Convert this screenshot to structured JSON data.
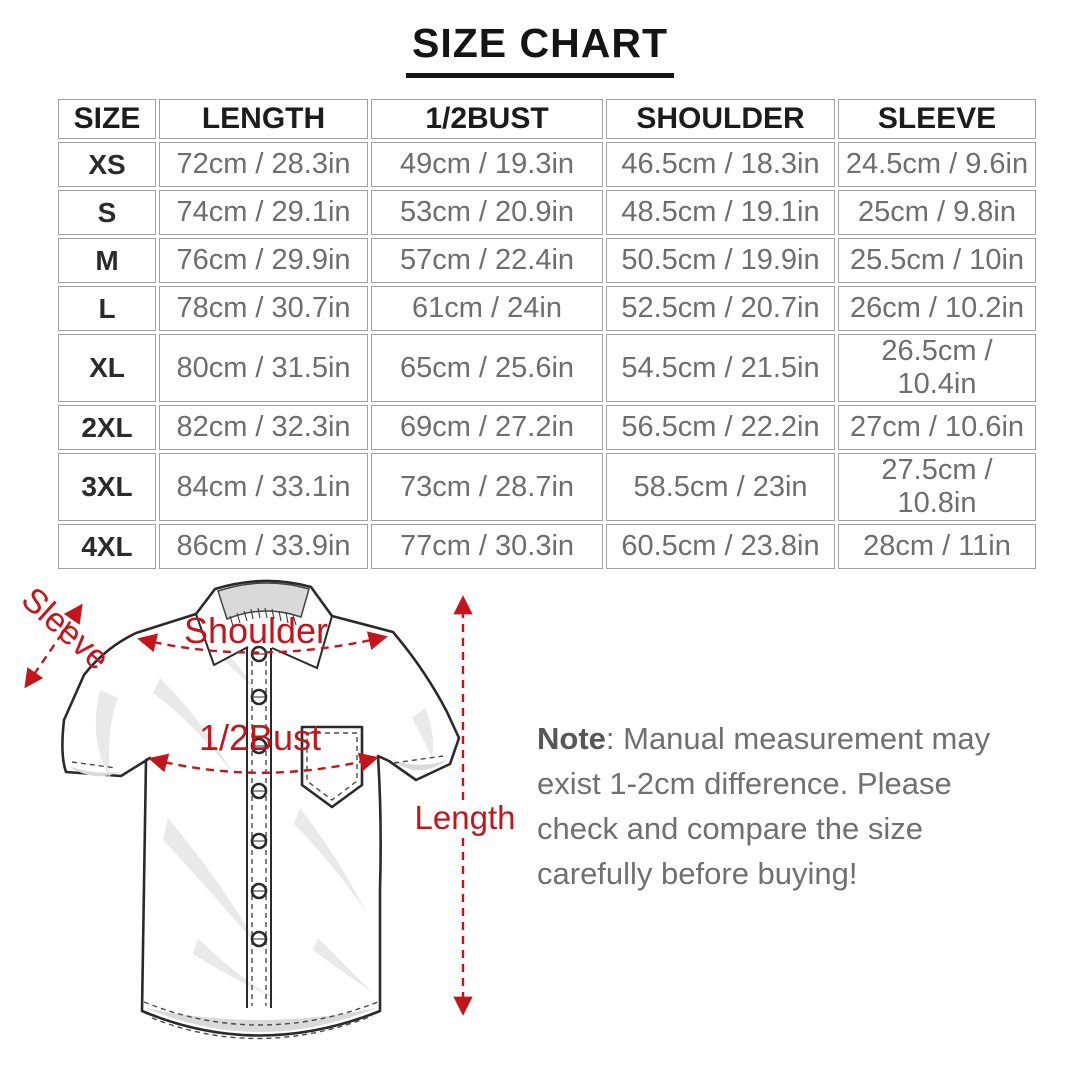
{
  "title": "SIZE CHART",
  "colors": {
    "accent": "#c4151c",
    "table_border": "#a0a0a0",
    "cell_text": "#6e6e6e"
  },
  "table": {
    "columns": [
      "SIZE",
      "LENGTH",
      "1/2BUST",
      "SHOULDER",
      "SLEEVE"
    ],
    "rows": [
      [
        "XS",
        "72cm / 28.3in",
        "49cm / 19.3in",
        "46.5cm / 18.3in",
        "24.5cm / 9.6in"
      ],
      [
        "S",
        "74cm / 29.1in",
        "53cm / 20.9in",
        "48.5cm / 19.1in",
        "25cm / 9.8in"
      ],
      [
        "M",
        "76cm / 29.9in",
        "57cm / 22.4in",
        "50.5cm / 19.9in",
        "25.5cm / 10in"
      ],
      [
        "L",
        "78cm / 30.7in",
        "61cm / 24in",
        "52.5cm / 20.7in",
        "26cm / 10.2in"
      ],
      [
        "XL",
        "80cm / 31.5in",
        "65cm / 25.6in",
        "54.5cm / 21.5in",
        "26.5cm / 10.4in"
      ],
      [
        "2XL",
        "82cm / 32.3in",
        "69cm / 27.2in",
        "56.5cm / 22.2in",
        "27cm / 10.6in"
      ],
      [
        "3XL",
        "84cm / 33.1in",
        "73cm / 28.7in",
        "58.5cm / 23in",
        "27.5cm / 10.8in"
      ],
      [
        "4XL",
        "86cm / 33.9in",
        "77cm / 30.3in",
        "60.5cm / 23.8in",
        "28cm / 11in"
      ]
    ]
  },
  "diagram": {
    "labels": {
      "sleeve": "Sleeve",
      "shoulder": "Shoulder",
      "bust": "1/2Bust",
      "length": "Length"
    }
  },
  "note": {
    "bold_label": "Note",
    "line1_rest": ": Manual measurement may",
    "lines": [
      "exist 1-2cm difference. Please",
      "check and compare the size",
      "carefully before buying!"
    ]
  }
}
